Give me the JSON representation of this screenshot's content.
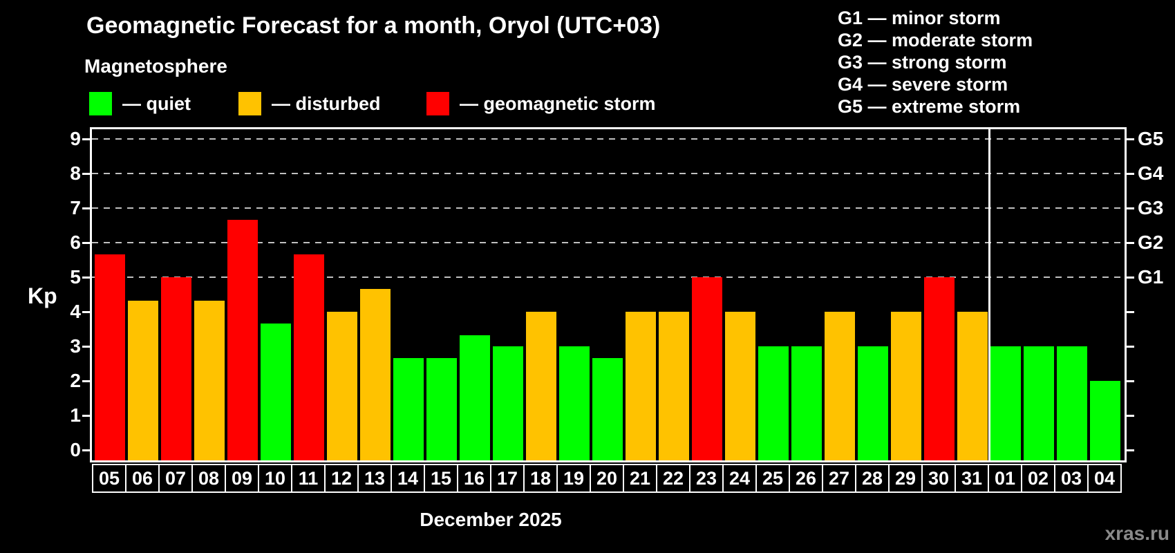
{
  "header": {
    "title": "Geomagnetic Forecast for a month, Oryol (UTC+03)",
    "subtitle": "Magnetosphere"
  },
  "legend": {
    "items": [
      {
        "swatch": "quiet",
        "label": "— quiet"
      },
      {
        "swatch": "disturbed",
        "label": "— disturbed"
      },
      {
        "swatch": "storm",
        "label": "— geomagnetic storm"
      }
    ]
  },
  "g_scale_legend": {
    "items": [
      "G1 — minor storm",
      "G2 — moderate storm",
      "G3 — strong storm",
      "G4 — severe storm",
      "G5 — extreme storm"
    ]
  },
  "colors": {
    "quiet": "#00ff00",
    "disturbed": "#ffc200",
    "storm": "#ff0000",
    "axis": "#ffffff",
    "grid": "#c0c0c0",
    "background": "#000000",
    "watermark": "#8a8a8a"
  },
  "chart_data": {
    "type": "bar",
    "title": "Geomagnetic Forecast for a month, Oryol (UTC+03)",
    "xlabel": "December 2025",
    "ylabel": "Kp",
    "ylim": [
      0,
      9
    ],
    "y_ticks": [
      0,
      1,
      2,
      3,
      4,
      5,
      6,
      7,
      8,
      9
    ],
    "gridlines_at_kp": [
      5,
      6,
      7,
      8,
      9
    ],
    "grid": "dashed horizontal lines at storm levels only",
    "legend_position": "top-left",
    "right_axis_labels": [
      {
        "label": "G1",
        "kp": 5
      },
      {
        "label": "G2",
        "kp": 6
      },
      {
        "label": "G3",
        "kp": 7
      },
      {
        "label": "G4",
        "kp": 8
      },
      {
        "label": "G5",
        "kp": 9
      }
    ],
    "categories": [
      "05",
      "06",
      "07",
      "08",
      "09",
      "10",
      "11",
      "12",
      "13",
      "14",
      "15",
      "16",
      "17",
      "18",
      "19",
      "20",
      "21",
      "22",
      "23",
      "24",
      "25",
      "26",
      "27",
      "28",
      "29",
      "30",
      "31",
      "01",
      "02",
      "03",
      "04"
    ],
    "values": [
      5.67,
      4.33,
      5.0,
      4.33,
      6.67,
      3.67,
      5.67,
      4.0,
      4.67,
      2.67,
      2.67,
      3.33,
      3.0,
      4.0,
      3.0,
      2.67,
      4.0,
      4.0,
      5.0,
      4.0,
      3.0,
      3.0,
      4.0,
      3.0,
      4.0,
      5.0,
      4.0,
      3.0,
      3.0,
      3.0,
      2.0
    ],
    "statuses": [
      "storm",
      "disturbed",
      "storm",
      "disturbed",
      "storm",
      "quiet",
      "storm",
      "disturbed",
      "disturbed",
      "quiet",
      "quiet",
      "quiet",
      "quiet",
      "disturbed",
      "quiet",
      "quiet",
      "disturbed",
      "disturbed",
      "storm",
      "disturbed",
      "quiet",
      "quiet",
      "disturbed",
      "quiet",
      "disturbed",
      "storm",
      "disturbed",
      "quiet",
      "quiet",
      "quiet",
      "quiet"
    ],
    "month_separator_after_index": 26
  },
  "watermark": "xras.ru"
}
